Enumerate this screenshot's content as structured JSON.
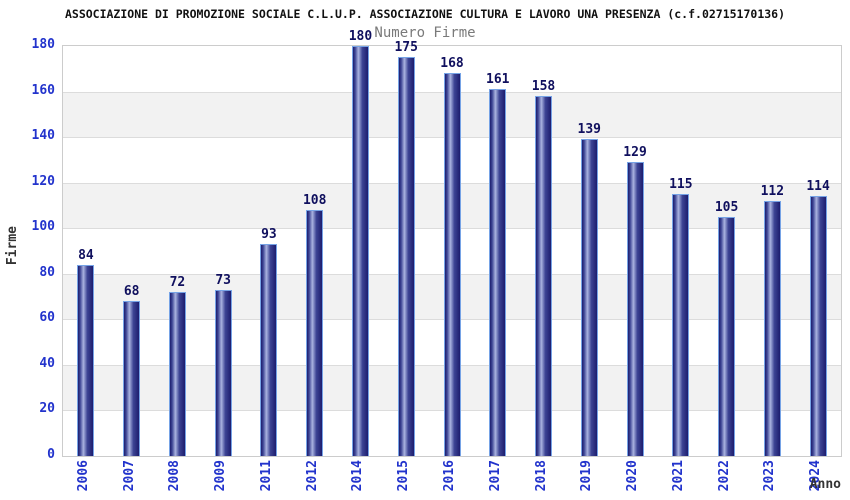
{
  "page": {
    "title": "ASSOCIAZIONE DI PROMOZIONE SOCIALE C.L.U.P. ASSOCIAZIONE CULTURA E LAVORO UNA PRESENZA (c.f.02715170136)",
    "subtitle": "Numero Firme"
  },
  "chart_data": {
    "type": "bar",
    "title": "Numero Firme",
    "categories": [
      "2006",
      "2007",
      "2008",
      "2009",
      "2011",
      "2012",
      "2014",
      "2015",
      "2016",
      "2017",
      "2018",
      "2019",
      "2020",
      "2021",
      "2022",
      "2023",
      "2024"
    ],
    "values": [
      84,
      68,
      72,
      73,
      93,
      108,
      180,
      175,
      168,
      161,
      158,
      139,
      129,
      115,
      105,
      112,
      114
    ],
    "xlabel": "Anno",
    "ylabel": "Firme",
    "ylim": [
      0,
      180
    ],
    "yticks": [
      0,
      20,
      40,
      60,
      80,
      100,
      120,
      140,
      160,
      180
    ],
    "grid": true,
    "legend": "none",
    "band_style": "alternating horizontal stripes, white and gray, 20 units each, white at top",
    "colors": {
      "bar_dark": "#1d1d6e",
      "bar_mid": "#3d4494",
      "bar_light": "#aab3e0",
      "bar_border": "#76a3e6",
      "tick_blue": "#2233cc",
      "value_navy": "#10105e",
      "band_gray": "#f2f2f2",
      "band_white": "#ffffff",
      "grid": "#dcdcdc",
      "plot_border": "#cccccc",
      "subtitle_gray": "#7a7a7a",
      "axis_dark": "#333333",
      "title_color": "#111111"
    }
  }
}
